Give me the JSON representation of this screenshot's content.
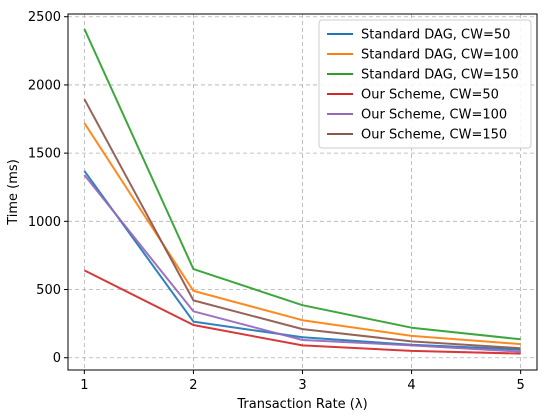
{
  "chart_data": {
    "type": "line",
    "title": "",
    "xlabel": "Transaction Rate (λ)",
    "ylabel": "Time (ms)",
    "x": [
      1,
      2,
      3,
      4,
      5
    ],
    "xlim": [
      0.85,
      5.15
    ],
    "ylim": [
      -90,
      2520
    ],
    "xticks": [
      1,
      2,
      3,
      4,
      5
    ],
    "yticks": [
      0,
      500,
      1000,
      1500,
      2000,
      2500
    ],
    "grid": true,
    "legend_position": "top-right",
    "series": [
      {
        "name": "Standard DAG, CW=50",
        "color": "#1f77b4",
        "values": [
          1370,
          265,
          150,
          95,
          60
        ]
      },
      {
        "name": "Standard DAG, CW=100",
        "color": "#ff7f0e",
        "values": [
          1720,
          490,
          275,
          160,
          100
        ]
      },
      {
        "name": "Standard DAG, CW=150",
        "color": "#2ca02c",
        "values": [
          2410,
          650,
          385,
          220,
          135
        ]
      },
      {
        "name": "Our Scheme, CW=50",
        "color": "#d62728",
        "values": [
          640,
          240,
          90,
          50,
          30
        ]
      },
      {
        "name": "Our Scheme, CW=100",
        "color": "#9467bd",
        "values": [
          1340,
          340,
          130,
          90,
          45
        ]
      },
      {
        "name": "Our Scheme, CW=150",
        "color": "#8c564b",
        "values": [
          1895,
          420,
          210,
          120,
          70
        ]
      }
    ]
  }
}
